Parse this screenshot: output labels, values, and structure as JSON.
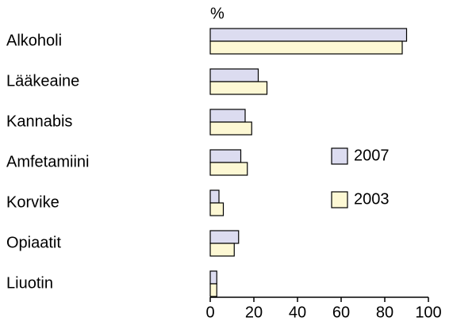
{
  "chart_data": {
    "type": "hbar",
    "unit_label": "%",
    "categories": [
      "Alkoholi",
      "Lääkeaine",
      "Kannabis",
      "Amfetamiini",
      "Korvike",
      "Opiaatit",
      "Liuotin"
    ],
    "series": [
      {
        "name": "2007",
        "color": "#dcdcf0",
        "values": [
          90,
          22,
          16,
          14,
          4,
          13,
          3
        ]
      },
      {
        "name": "2003",
        "color": "#fdf8d4",
        "values": [
          88,
          26,
          19,
          17,
          6,
          11,
          3
        ]
      }
    ],
    "xlim": [
      0,
      100
    ],
    "xticks": [
      0,
      20,
      40,
      60,
      80,
      100
    ],
    "grid": false
  }
}
